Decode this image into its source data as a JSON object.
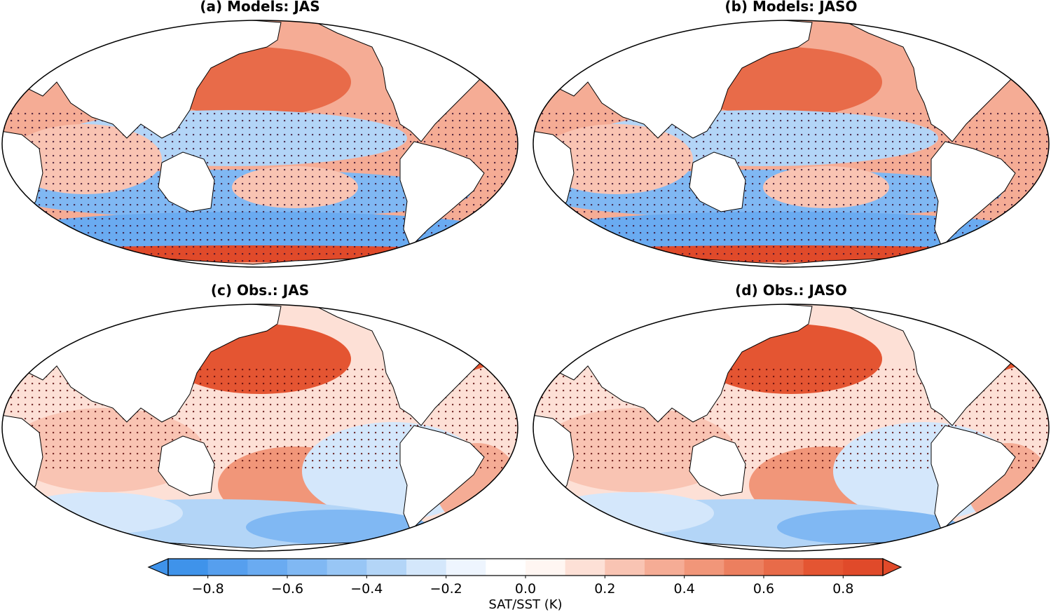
{
  "panels": [
    {
      "title": "(a) Models: JAS",
      "type": "models"
    },
    {
      "title": "(b) Models: JASO",
      "type": "models"
    },
    {
      "title": "(c) Obs.: JAS",
      "type": "obs"
    },
    {
      "title": "(d) Obs.: JASO",
      "type": "obs"
    }
  ],
  "colorbar": {
    "label": "SAT/SST (K)",
    "ticks": [
      "−0.8",
      "−0.6",
      "−0.4",
      "−0.2",
      "0.0",
      "0.2",
      "0.4",
      "0.6",
      "0.8"
    ],
    "tick_values": [
      -0.8,
      -0.6,
      -0.4,
      -0.2,
      0.0,
      0.2,
      0.4,
      0.6,
      0.8
    ],
    "range": [
      -0.9,
      0.9
    ],
    "extend": "both",
    "colors": [
      "#3f93ea",
      "#569fee",
      "#6aabf1",
      "#80b8f3",
      "#98c6f5",
      "#b3d5f7",
      "#d4e7fb",
      "#eef5fe",
      "#ffffff",
      "#fff6f2",
      "#fde0d6",
      "#f9c4b3",
      "#f5ac95",
      "#f19679",
      "#ec7f5f",
      "#e86b49",
      "#e45532",
      "#e04a2a"
    ]
  },
  "stipple_colors": {
    "positive": "#7a0a0a",
    "negative": "#0a1a7a"
  }
}
